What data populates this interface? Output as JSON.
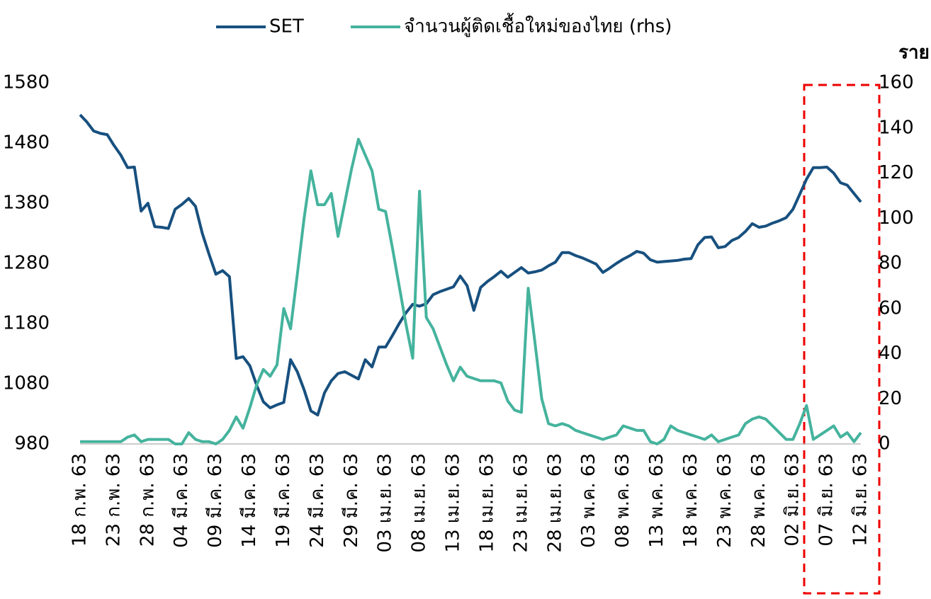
{
  "chart_data": {
    "type": "line",
    "y2_label": "ราย",
    "categories": [
      "18 ก.พ. 63",
      null,
      null,
      null,
      null,
      "23 ก.พ. 63",
      null,
      null,
      null,
      null,
      "28 ก.พ. 63",
      null,
      null,
      null,
      null,
      "04 มี.ค. 63",
      null,
      null,
      null,
      null,
      "09 มี.ค. 63",
      null,
      null,
      null,
      null,
      "14 มี.ค. 63",
      null,
      null,
      null,
      null,
      "19 มี.ค. 63",
      null,
      null,
      null,
      null,
      "24 มี.ค. 63",
      null,
      null,
      null,
      null,
      "29 มี.ค. 63",
      null,
      null,
      null,
      null,
      "03 เม.ย. 63",
      null,
      null,
      null,
      null,
      "08 เม.ย. 63",
      null,
      null,
      null,
      null,
      "13 เม.ย. 63",
      null,
      null,
      null,
      null,
      "18 เม.ย. 63",
      null,
      null,
      null,
      null,
      "23 เม.ย. 63",
      null,
      null,
      null,
      null,
      "28 เม.ย. 63",
      null,
      null,
      null,
      null,
      "03 พ.ค. 63",
      null,
      null,
      null,
      null,
      "08 พ.ค. 63",
      null,
      null,
      null,
      null,
      "13 พ.ค. 63",
      null,
      null,
      null,
      null,
      "18 พ.ค. 63",
      null,
      null,
      null,
      null,
      "23 พ.ค. 63",
      null,
      null,
      null,
      null,
      "28 พ.ค. 63",
      null,
      null,
      null,
      null,
      "02 มิ.ย. 63",
      null,
      null,
      null,
      null,
      "07 มิ.ย. 63",
      null,
      null,
      null,
      null,
      "12 มิ.ย. 63"
    ],
    "series": [
      {
        "name": "SET",
        "color": "#17507f",
        "values": [
          1527,
          1515,
          1500,
          1496,
          1494,
          1476,
          1460,
          1439,
          1440,
          1367,
          1380,
          1341,
          1340,
          1338,
          1370,
          1378,
          1388,
          1375,
          1330,
          1295,
          1262,
          1268,
          1258,
          1122,
          1125,
          1110,
          1078,
          1050,
          1040,
          1045,
          1049,
          1120,
          1100,
          1070,
          1035,
          1028,
          1065,
          1085,
          1097,
          1100,
          1094,
          1088,
          1120,
          1108,
          1141,
          1141,
          1160,
          1180,
          1198,
          1212,
          1209,
          1213,
          1228,
          1233,
          1237,
          1241,
          1259,
          1243,
          1202,
          1240,
          1250,
          1258,
          1267,
          1257,
          1265,
          1273,
          1264,
          1266,
          1269,
          1276,
          1282,
          1298,
          1298,
          1293,
          1289,
          1284,
          1279,
          1265,
          1272,
          1280,
          1287,
          1293,
          1300,
          1297,
          1286,
          1282,
          1283,
          1284,
          1285,
          1287,
          1288,
          1311,
          1323,
          1324,
          1306,
          1308,
          1318,
          1323,
          1333,
          1346,
          1340,
          1342,
          1347,
          1351,
          1356,
          1370,
          1395,
          1420,
          1439,
          1439,
          1440,
          1430,
          1414,
          1410,
          1396,
          1382
        ]
      },
      {
        "name": "จำนวนผู้ติดเชื้อใหม่ของไทย (rhs)",
        "color": "#45b39d",
        "axis": "y2",
        "values": [
          1,
          1,
          1,
          1,
          1,
          1,
          1,
          3,
          4,
          1,
          2,
          2,
          2,
          2,
          0,
          0,
          5,
          2,
          1,
          1,
          0,
          2,
          6,
          12,
          7,
          16,
          26,
          33,
          30,
          35,
          60,
          51,
          75,
          100,
          121,
          106,
          106,
          111,
          92,
          107,
          122,
          135,
          128,
          121,
          104,
          103,
          87,
          70,
          53,
          38,
          112,
          56,
          51,
          43,
          35,
          28,
          34,
          30,
          29,
          28,
          28,
          28,
          27,
          19,
          15,
          14,
          69,
          45,
          20,
          9,
          8,
          9,
          8,
          6,
          5,
          4,
          3,
          2,
          3,
          4,
          8,
          7,
          6,
          6,
          1,
          0,
          2,
          8,
          6,
          5,
          4,
          3,
          2,
          4,
          1,
          2,
          3,
          4,
          9,
          11,
          12,
          11,
          8,
          5,
          2,
          2,
          9,
          17,
          2,
          4,
          6,
          8,
          3,
          5,
          1,
          5
        ]
      }
    ],
    "ylim": [
      980,
      1580
    ],
    "yticks": [
      980,
      1080,
      1180,
      1280,
      1380,
      1480,
      1580
    ],
    "y2lim": [
      0,
      160
    ],
    "y2ticks": [
      0,
      20,
      40,
      60,
      80,
      100,
      120,
      140,
      160
    ],
    "legend": "top"
  }
}
